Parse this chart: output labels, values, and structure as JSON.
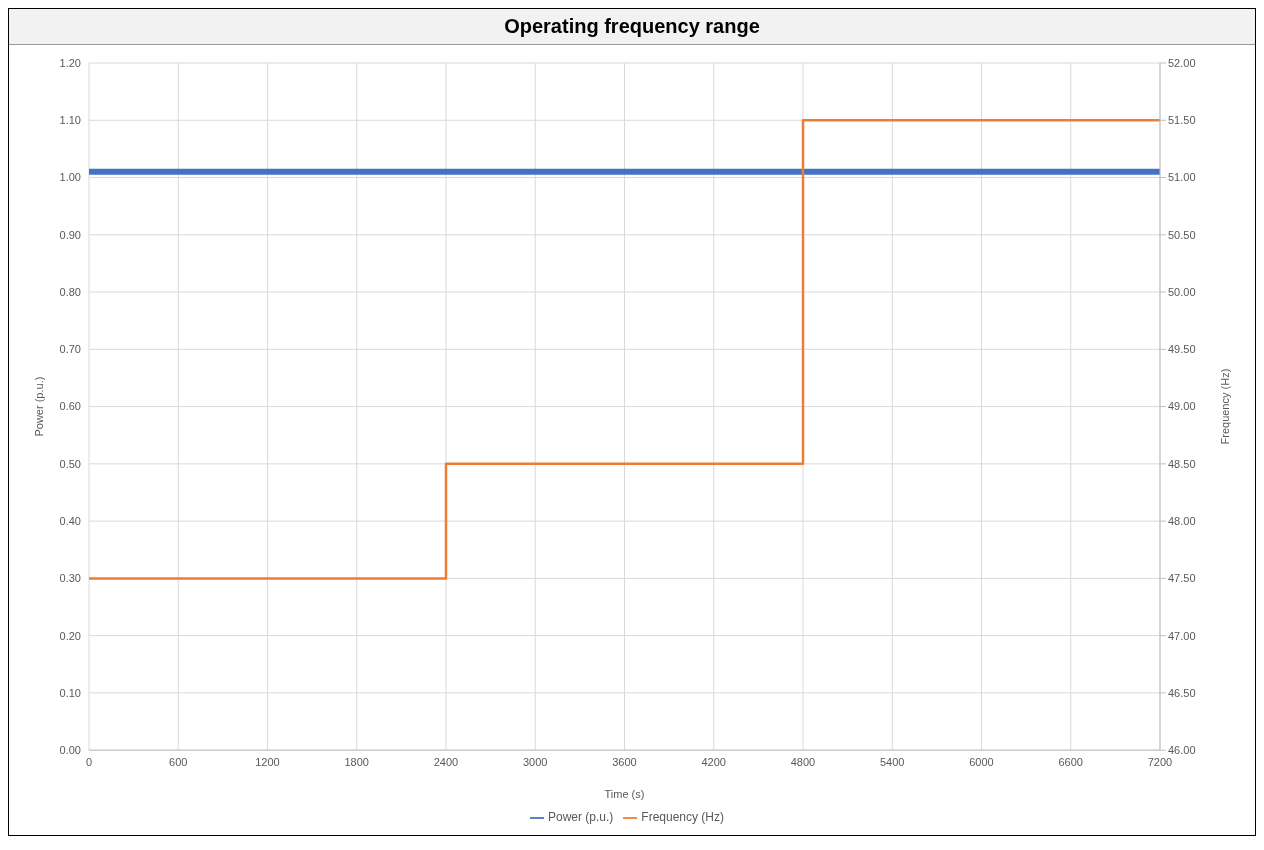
{
  "chart_data": {
    "type": "line",
    "title": "Operating frequency range",
    "xlabel": "Time (s)",
    "ylabel": "Power (p.u.)",
    "y2label": "Frequency (Hz)",
    "series": [
      {
        "name": "Power (p.u.)",
        "color": "#4472c4",
        "x": [
          0,
          7200
        ],
        "values": [
          1.01,
          1.01
        ]
      },
      {
        "name": "Frequency (Hz)",
        "color": "#ed7d31",
        "type": "step",
        "axis": "y2",
        "x": [
          0,
          2400,
          4800,
          7200
        ],
        "values": [
          47.5,
          48.5,
          51.5,
          51.5
        ]
      }
    ],
    "xlim": [
      0,
      7200
    ],
    "xticks": [
      0,
      600,
      1200,
      1800,
      2400,
      3000,
      3600,
      4200,
      4800,
      5400,
      6000,
      6600,
      7200
    ],
    "ylim": [
      0,
      1.2
    ],
    "yticks": [
      {
        "value": 0,
        "label": "0.00"
      },
      {
        "value": 0.1,
        "label": "0.10"
      },
      {
        "value": 0.2,
        "label": "0.20"
      },
      {
        "value": 0.3,
        "label": "0.30"
      },
      {
        "value": 0.4,
        "label": "0.40"
      },
      {
        "value": 0.5,
        "label": "0.50"
      },
      {
        "value": 0.6,
        "label": "0.60"
      },
      {
        "value": 0.7,
        "label": "0.70"
      },
      {
        "value": 0.8,
        "label": "0.80"
      },
      {
        "value": 0.9,
        "label": "0.90"
      },
      {
        "value": 1,
        "label": "1.00"
      },
      {
        "value": 1.1,
        "label": "1.10"
      },
      {
        "value": 1.2,
        "label": "1.20"
      }
    ],
    "y2lim": [
      46,
      52
    ],
    "y2ticks": [
      {
        "value": 46,
        "label": "46.00"
      },
      {
        "value": 46.5,
        "label": "46.50"
      },
      {
        "value": 47,
        "label": "47.00"
      },
      {
        "value": 47.5,
        "label": "47.50"
      },
      {
        "value": 48,
        "label": "48.00"
      },
      {
        "value": 48.5,
        "label": "48.50"
      },
      {
        "value": 49,
        "label": "49.00"
      },
      {
        "value": 49.5,
        "label": "49.50"
      },
      {
        "value": 50,
        "label": "50.00"
      },
      {
        "value": 50.5,
        "label": "50.50"
      },
      {
        "value": 51,
        "label": "51.00"
      },
      {
        "value": 51.5,
        "label": "51.50"
      },
      {
        "value": 52,
        "label": "52.00"
      }
    ],
    "grid": true,
    "legend": "bottom",
    "marker": "none",
    "line_style": "solid"
  }
}
